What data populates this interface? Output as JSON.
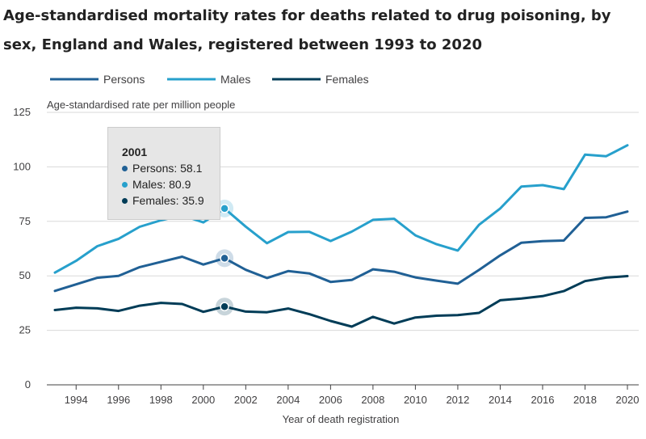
{
  "title": "Age-standardised mortality rates for deaths related to drug poisoning, by sex, England and Wales, registered between 1993 to 2020",
  "colors": {
    "persons": "#206095",
    "males": "#27a0cc",
    "females": "#003c57",
    "grid": "#d9d9d9",
    "axis": "#414042"
  },
  "tooltip": {
    "year": "2001",
    "rows": [
      {
        "label": "Persons: 58.1",
        "series": "persons"
      },
      {
        "label": "Males: 80.9",
        "series": "males"
      },
      {
        "label": "Females: 35.9",
        "series": "females"
      }
    ]
  },
  "chart_data": {
    "type": "line",
    "title": "Age-standardised mortality rates for deaths related to drug poisoning, by sex, England and Wales, registered between 1993 to 2020",
    "ylabel": "Age-standardised rate per million people",
    "xlabel": "Year of death registration",
    "ylim": [
      0,
      125
    ],
    "xlim": [
      1993,
      2020
    ],
    "yticks": [
      0,
      25,
      50,
      75,
      100,
      125
    ],
    "xticks": [
      1994,
      1996,
      1998,
      2000,
      2002,
      2004,
      2006,
      2008,
      2010,
      2012,
      2014,
      2016,
      2018,
      2020
    ],
    "grid": "horizontal",
    "legend": "top-left",
    "highlight_x": 2001,
    "x": [
      1993,
      1994,
      1995,
      1996,
      1997,
      1998,
      1999,
      2000,
      2001,
      2002,
      2003,
      2004,
      2005,
      2006,
      2007,
      2008,
      2009,
      2010,
      2011,
      2012,
      2013,
      2014,
      2015,
      2016,
      2017,
      2018,
      2019,
      2020
    ],
    "series": [
      {
        "name": "Persons",
        "key": "persons",
        "values": [
          43.1,
          46.1,
          49.1,
          50.0,
          54.0,
          56.4,
          58.8,
          55.2,
          58.1,
          52.8,
          49.0,
          52.2,
          51.1,
          47.2,
          48.1,
          53.0,
          51.9,
          49.3,
          47.8,
          46.4,
          52.7,
          59.4,
          65.2,
          65.9,
          66.2,
          76.6,
          76.9,
          79.5
        ]
      },
      {
        "name": "Males",
        "key": "males",
        "values": [
          51.5,
          56.9,
          63.6,
          67.0,
          72.5,
          75.5,
          77.8,
          74.5,
          80.9,
          72.6,
          65.0,
          70.1,
          70.2,
          66.0,
          70.3,
          75.7,
          76.2,
          68.6,
          64.5,
          61.6,
          73.4,
          80.9,
          91.0,
          91.6,
          89.8,
          105.6,
          104.9,
          109.9
        ]
      },
      {
        "name": "Females",
        "key": "females",
        "values": [
          34.3,
          35.4,
          35.1,
          33.9,
          36.3,
          37.6,
          37.1,
          33.5,
          35.9,
          33.6,
          33.3,
          35.0,
          32.4,
          29.3,
          26.7,
          31.2,
          28.1,
          30.9,
          31.7,
          32.0,
          33.0,
          38.8,
          39.6,
          40.7,
          43.0,
          47.6,
          49.2,
          49.9
        ]
      }
    ]
  }
}
